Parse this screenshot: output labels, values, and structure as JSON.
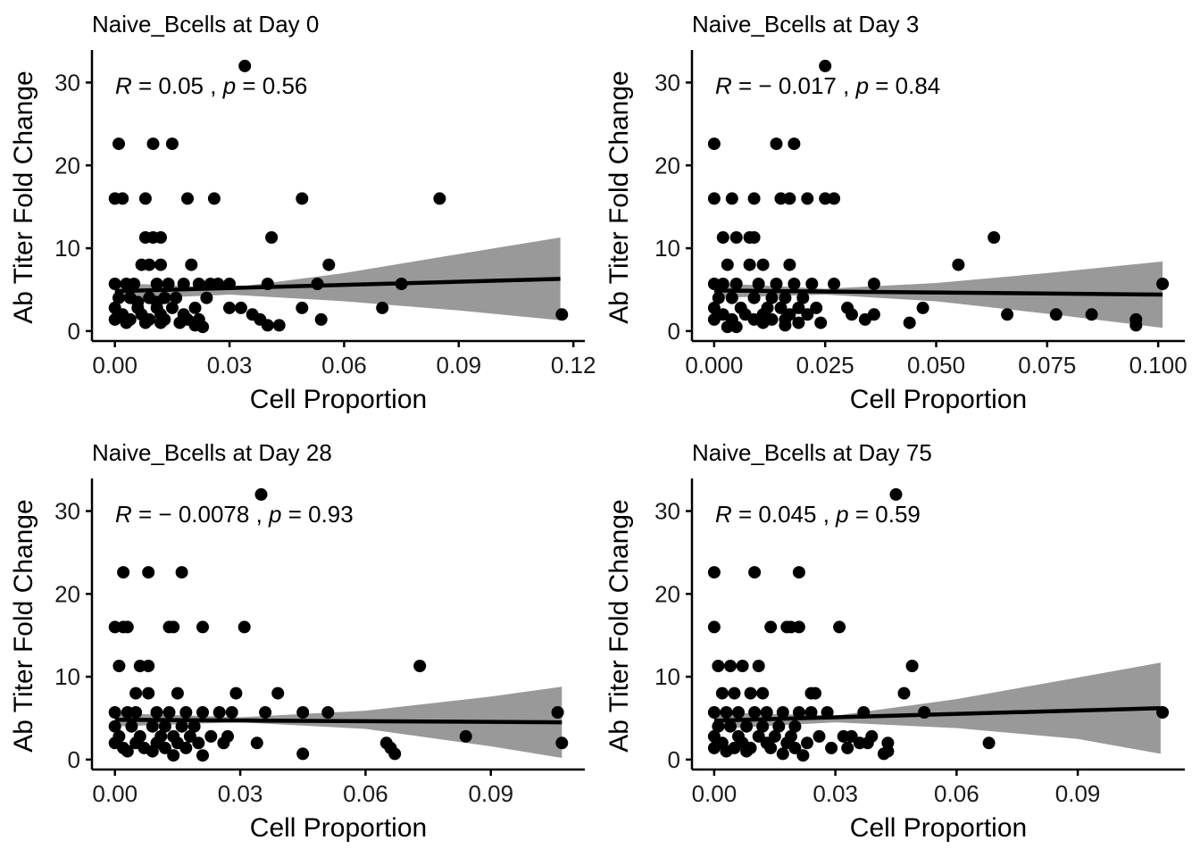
{
  "colors": {
    "points": "#000000",
    "line": "#000000",
    "band": "#999999",
    "axis": "#000000"
  },
  "chart_data": [
    {
      "type": "scatter",
      "title": "Naive_Bcells at Day 0",
      "xlabel": "Cell Proportion",
      "ylabel": "Ab Titer Fold Change",
      "xlim": [
        -0.006,
        0.123
      ],
      "ylim": [
        -1.2,
        33.5
      ],
      "xticks": [
        0.0,
        0.03,
        0.06,
        0.09,
        0.12
      ],
      "xtick_labels": [
        "0.00",
        "0.03",
        "0.06",
        "0.09",
        "0.12"
      ],
      "yticks": [
        0,
        10,
        20,
        30
      ],
      "ytick_labels": [
        "0",
        "10",
        "20",
        "30"
      ],
      "stats": {
        "r_symbol": "R",
        "r_value": "= 0.05",
        "sep": ",",
        "p_symbol": "p",
        "p_value": "= 0.56"
      },
      "fit": {
        "x": [
          0.0,
          0.1166
        ],
        "y": [
          4.8,
          6.3
        ]
      },
      "band": {
        "x": [
          0.0,
          0.03,
          0.06,
          0.09,
          0.1166
        ],
        "upper": [
          5.8,
          5.2,
          7.0,
          9.3,
          11.3
        ],
        "lower": [
          3.8,
          4.4,
          3.6,
          2.5,
          1.3
        ]
      },
      "points": {
        "x": [
          0.034,
          0.001,
          0.01,
          0.015,
          0.0,
          0.002,
          0.008,
          0.019,
          0.026,
          0.049,
          0.085,
          0.008,
          0.01,
          0.012,
          0.041,
          0.007,
          0.009,
          0.012,
          0.02,
          0.056,
          0.0,
          0.003,
          0.005,
          0.011,
          0.014,
          0.018,
          0.022,
          0.025,
          0.027,
          0.03,
          0.04,
          0.053,
          0.075,
          0.001,
          0.004,
          0.009,
          0.013,
          0.016,
          0.024,
          0.0,
          0.006,
          0.011,
          0.015,
          0.021,
          0.03,
          0.033,
          0.049,
          0.07,
          0.002,
          0.007,
          0.012,
          0.018,
          0.036,
          0.0,
          0.004,
          0.009,
          0.013,
          0.019,
          0.022,
          0.038,
          0.054,
          0.117,
          0.003,
          0.008,
          0.012,
          0.017,
          0.021,
          0.023,
          0.04,
          0.043,
          0.006,
          0.011
        ],
        "y": [
          32,
          22.6,
          22.6,
          22.6,
          16,
          16,
          16,
          16,
          16,
          16,
          16,
          11.3,
          11.3,
          11.3,
          11.3,
          8,
          8,
          8,
          8,
          8,
          5.7,
          5.7,
          5.7,
          5.7,
          5.7,
          5.7,
          5.7,
          5.7,
          5.7,
          5.7,
          5.7,
          5.7,
          5.7,
          4,
          4,
          4,
          4,
          4,
          4,
          2.8,
          2.8,
          2.8,
          2.8,
          2.8,
          2.8,
          2.8,
          2.8,
          2.8,
          2,
          2,
          2,
          2,
          2,
          1.4,
          1.4,
          1.4,
          1.4,
          1.4,
          1.4,
          1.4,
          1.4,
          2,
          1,
          1,
          1,
          1,
          0.7,
          0.5,
          0.7,
          0.7,
          3.5,
          3.5
        ]
      }
    },
    {
      "type": "scatter",
      "title": "Naive_Bcells at Day 3",
      "xlabel": "Cell Proportion",
      "ylabel": "Ab Titer Fold Change",
      "xlim": [
        -0.005,
        0.106
      ],
      "ylim": [
        -1.2,
        33.5
      ],
      "xticks": [
        0.0,
        0.025,
        0.05,
        0.075,
        0.1
      ],
      "xtick_labels": [
        "0.000",
        "0.025",
        "0.050",
        "0.075",
        "0.100"
      ],
      "yticks": [
        0,
        10,
        20,
        30
      ],
      "ytick_labels": [
        "0",
        "10",
        "20",
        "30"
      ],
      "stats": {
        "r_symbol": "R",
        "r_value": "= − 0.017",
        "sep": ",",
        "p_symbol": "p",
        "p_value": "= 0.84"
      },
      "fit": {
        "x": [
          0.0,
          0.101
        ],
        "y": [
          4.9,
          4.4
        ]
      },
      "band": {
        "x": [
          0.0,
          0.025,
          0.05,
          0.075,
          0.101
        ],
        "upper": [
          5.8,
          5.1,
          5.8,
          7.0,
          8.4
        ],
        "lower": [
          4.0,
          4.4,
          3.6,
          2.1,
          0.4
        ]
      },
      "points": {
        "x": [
          0.025,
          0.0,
          0.014,
          0.018,
          0.0,
          0.004,
          0.009,
          0.015,
          0.017,
          0.021,
          0.025,
          0.027,
          0.002,
          0.005,
          0.008,
          0.009,
          0.063,
          0.003,
          0.008,
          0.011,
          0.017,
          0.055,
          0.0,
          0.002,
          0.005,
          0.01,
          0.014,
          0.018,
          0.022,
          0.027,
          0.036,
          0.101,
          0.001,
          0.004,
          0.009,
          0.013,
          0.016,
          0.02,
          0.0,
          0.006,
          0.012,
          0.015,
          0.019,
          0.023,
          0.03,
          0.047,
          0.002,
          0.007,
          0.011,
          0.017,
          0.021,
          0.031,
          0.034,
          0.036,
          0.066,
          0.077,
          0.085,
          0.095,
          0.0,
          0.004,
          0.009,
          0.013,
          0.016,
          0.019,
          0.024,
          0.044,
          0.095,
          0.003,
          0.005,
          0.011,
          0.016
        ],
        "y": [
          32,
          22.6,
          22.6,
          22.6,
          16,
          16,
          16,
          16,
          16,
          16,
          16,
          16,
          11.3,
          11.3,
          11.3,
          11.3,
          11.3,
          8,
          8,
          8,
          8,
          8,
          5.7,
          5.7,
          5.7,
          5.7,
          5.7,
          5.7,
          5.7,
          5.7,
          5.7,
          5.7,
          4,
          4,
          4,
          4,
          4,
          4,
          2.8,
          2.8,
          2.8,
          2.8,
          2.8,
          2.8,
          2.8,
          2.8,
          2,
          2,
          2,
          2,
          2,
          2,
          1.4,
          2,
          2,
          2,
          2,
          1.4,
          1.4,
          1.4,
          1.4,
          1.4,
          1.4,
          1,
          1,
          1,
          0.7,
          0.5,
          0.5,
          1,
          0.7
        ]
      }
    },
    {
      "type": "scatter",
      "title": "Naive_Bcells at Day 28",
      "xlabel": "Cell Proportion",
      "ylabel": "Ab Titer Fold Change",
      "xlim": [
        -0.0055,
        0.1125
      ],
      "ylim": [
        -1.2,
        33.5
      ],
      "xticks": [
        0.0,
        0.03,
        0.06,
        0.09
      ],
      "xtick_labels": [
        "0.00",
        "0.03",
        "0.06",
        "0.09"
      ],
      "yticks": [
        0,
        10,
        20,
        30
      ],
      "ytick_labels": [
        "0",
        "10",
        "20",
        "30"
      ],
      "stats": {
        "r_symbol": "R",
        "r_value": "= − 0.0078",
        "sep": ",",
        "p_symbol": "p",
        "p_value": "= 0.93"
      },
      "fit": {
        "x": [
          0.0,
          0.107
        ],
        "y": [
          4.8,
          4.5
        ]
      },
      "band": {
        "x": [
          0.0,
          0.03,
          0.06,
          0.09,
          0.107
        ],
        "upper": [
          5.6,
          5.1,
          5.9,
          7.6,
          8.8
        ],
        "lower": [
          4.0,
          4.5,
          3.7,
          1.6,
          0.2
        ]
      },
      "points": {
        "x": [
          0.035,
          0.002,
          0.008,
          0.016,
          0.0,
          0.002,
          0.003,
          0.013,
          0.014,
          0.021,
          0.031,
          0.001,
          0.006,
          0.008,
          0.073,
          0.005,
          0.008,
          0.015,
          0.029,
          0.039,
          0.0,
          0.003,
          0.005,
          0.01,
          0.013,
          0.017,
          0.021,
          0.025,
          0.028,
          0.036,
          0.045,
          0.051,
          0.106,
          0.0,
          0.004,
          0.009,
          0.012,
          0.016,
          0.019,
          0.084,
          0.001,
          0.006,
          0.011,
          0.014,
          0.018,
          0.023,
          0.027,
          0.034,
          0.0,
          0.005,
          0.01,
          0.015,
          0.02,
          0.026,
          0.065,
          0.107,
          0.002,
          0.007,
          0.012,
          0.017,
          0.021,
          0.045,
          0.066,
          0.067,
          0.003,
          0.009,
          0.014
        ],
        "y": [
          32,
          22.6,
          22.6,
          22.6,
          16,
          16,
          16,
          16,
          16,
          16,
          16,
          11.3,
          11.3,
          11.3,
          11.3,
          8,
          8,
          8,
          8,
          8,
          5.7,
          5.7,
          5.7,
          5.7,
          5.7,
          5.7,
          5.7,
          5.7,
          5.7,
          5.7,
          5.7,
          5.7,
          5.7,
          4,
          4,
          4,
          4,
          4,
          4,
          2.8,
          2.8,
          2.8,
          2.8,
          2.8,
          2.8,
          2.8,
          2.8,
          2,
          2,
          2,
          2,
          2,
          2,
          2,
          2,
          2,
          1.4,
          1.4,
          1.4,
          1.4,
          0.5,
          0.7,
          1.4,
          0.7,
          1,
          1,
          0.5
        ]
      }
    },
    {
      "type": "scatter",
      "title": "Naive_Bcells at Day 75",
      "xlabel": "Cell Proportion",
      "ylabel": "Ab Titer Fold Change",
      "xlim": [
        -0.0055,
        0.1165
      ],
      "ylim": [
        -1.2,
        33.5
      ],
      "xticks": [
        0.0,
        0.03,
        0.06,
        0.09
      ],
      "xtick_labels": [
        "0.00",
        "0.03",
        "0.06",
        "0.09"
      ],
      "yticks": [
        0,
        10,
        20,
        30
      ],
      "ytick_labels": [
        "0",
        "10",
        "20",
        "30"
      ],
      "stats": {
        "r_symbol": "R",
        "r_value": "= 0.045",
        "sep": ",",
        "p_symbol": "p",
        "p_value": "= 0.59"
      },
      "fit": {
        "x": [
          0.0,
          0.1105
        ],
        "y": [
          4.7,
          6.2
        ]
      },
      "band": {
        "x": [
          0.0,
          0.03,
          0.06,
          0.09,
          0.1105
        ],
        "upper": [
          5.7,
          5.3,
          7.3,
          9.9,
          11.7
        ],
        "lower": [
          3.7,
          4.5,
          3.8,
          2.5,
          0.7
        ]
      },
      "points": {
        "x": [
          0.045,
          0.0,
          0.01,
          0.021,
          0.0,
          0.014,
          0.018,
          0.019,
          0.021,
          0.031,
          0.001,
          0.004,
          0.007,
          0.011,
          0.049,
          0.002,
          0.005,
          0.009,
          0.012,
          0.024,
          0.025,
          0.047,
          0.0,
          0.003,
          0.006,
          0.01,
          0.013,
          0.017,
          0.021,
          0.024,
          0.028,
          0.037,
          0.052,
          0.111,
          0.001,
          0.004,
          0.008,
          0.012,
          0.016,
          0.02,
          0.0,
          0.006,
          0.011,
          0.015,
          0.019,
          0.026,
          0.032,
          0.034,
          0.039,
          0.002,
          0.007,
          0.013,
          0.018,
          0.023,
          0.036,
          0.038,
          0.043,
          0.068,
          0.0,
          0.005,
          0.009,
          0.014,
          0.02,
          0.029,
          0.033,
          0.042,
          0.043,
          0.003,
          0.008,
          0.017,
          0.022
        ],
        "y": [
          32,
          22.6,
          22.6,
          22.6,
          16,
          16,
          16,
          16,
          16,
          16,
          11.3,
          11.3,
          11.3,
          11.3,
          11.3,
          8,
          8,
          8,
          8,
          8,
          8,
          8,
          5.7,
          5.7,
          5.7,
          5.7,
          5.7,
          5.7,
          5.7,
          5.7,
          5.7,
          5.7,
          5.7,
          5.7,
          4,
          4,
          4,
          4,
          4,
          4,
          2.8,
          2.8,
          2.8,
          2.8,
          2.8,
          2.8,
          2.8,
          2.8,
          2.8,
          2,
          2,
          2,
          2,
          2,
          2,
          2,
          2,
          2,
          1.4,
          1.4,
          1.4,
          1.4,
          1.4,
          1.4,
          1.4,
          0.7,
          1,
          1,
          1,
          0.7,
          0.5
        ]
      }
    }
  ]
}
